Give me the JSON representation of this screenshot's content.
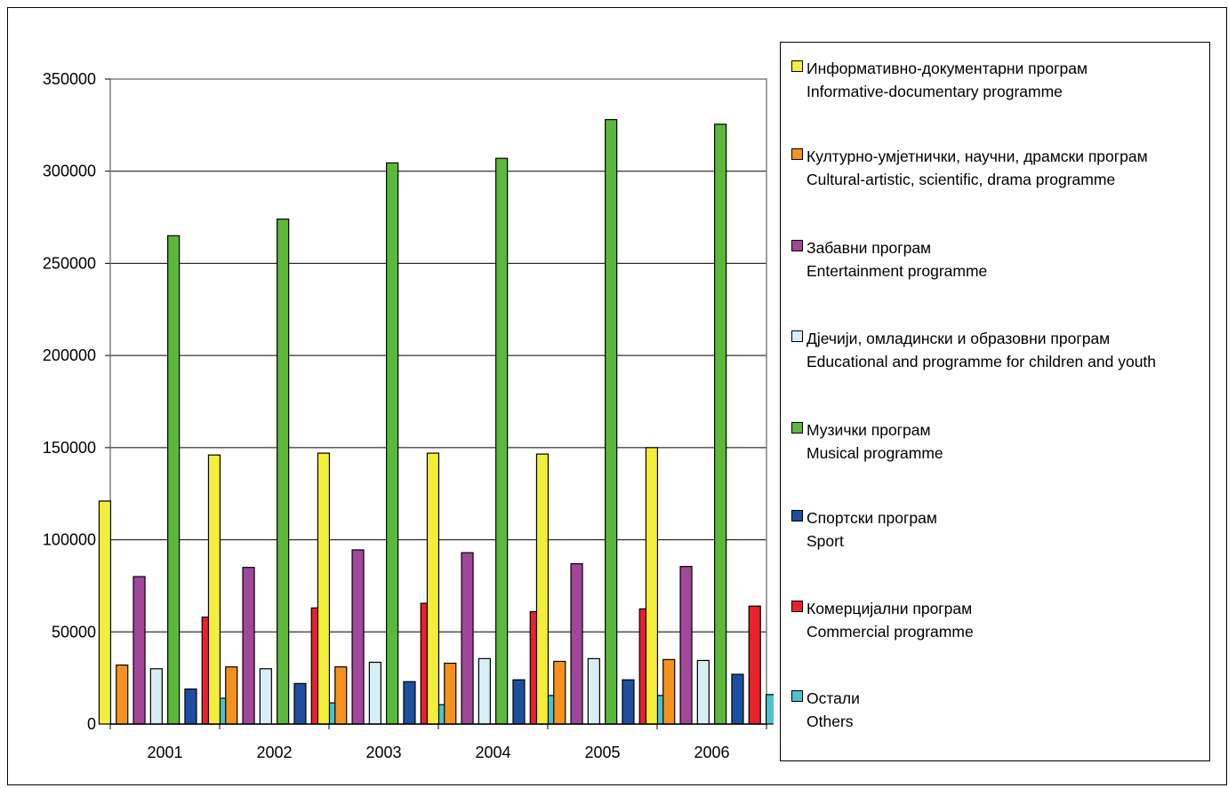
{
  "chart_data": {
    "type": "bar",
    "categories": [
      "2001",
      "2002",
      "2003",
      "2004",
      "2005",
      "2006"
    ],
    "ylim": [
      0,
      350000
    ],
    "yticks": [
      "0",
      "50000",
      "100000",
      "150000",
      "200000",
      "250000",
      "300000",
      "350000"
    ],
    "grid": true,
    "legend_position": "right",
    "series": [
      {
        "name": "Информативно-документарни програм",
        "name_en": "Informative-documentary programme",
        "color": "#f2ee3a",
        "values": [
          121000,
          146000,
          147000,
          147000,
          146500,
          150000
        ]
      },
      {
        "name": "Културно-умјетнички, научни, драмски програм",
        "name_en": "Cultural-artistic, scientific, drama programme",
        "color": "#f5921e",
        "values": [
          32000,
          31000,
          31000,
          33000,
          34000,
          35000
        ]
      },
      {
        "name": "Забавни програм",
        "name_en": "Entertainment programme",
        "color": "#a0479a",
        "values": [
          80000,
          85000,
          94500,
          93000,
          87000,
          85500
        ]
      },
      {
        "name": "Дјечији, омладински и образовни програм",
        "name_en": "Educational and programme for children and youth",
        "color": "#d7eef4",
        "values": [
          30000,
          30000,
          33500,
          35500,
          35500,
          34500
        ]
      },
      {
        "name": "Музички програм",
        "name_en": "Musical programme",
        "color": "#5cb83b",
        "values": [
          265000,
          274000,
          304500,
          307000,
          328000,
          325500
        ]
      },
      {
        "name": "Спортски програм",
        "name_en": "Sport",
        "color": "#1e4ea0",
        "values": [
          19000,
          22000,
          23000,
          24000,
          24000,
          27000
        ]
      },
      {
        "name": "Комерцијални програм",
        "name_en": "Commercial programme",
        "color": "#e9212a",
        "values": [
          58000,
          63000,
          65500,
          61000,
          62500,
          64000
        ]
      },
      {
        "name": "Остали",
        "name_en": "Others",
        "color": "#4ec1d0",
        "values": [
          14000,
          11500,
          10500,
          15500,
          15500,
          16000
        ]
      }
    ]
  }
}
